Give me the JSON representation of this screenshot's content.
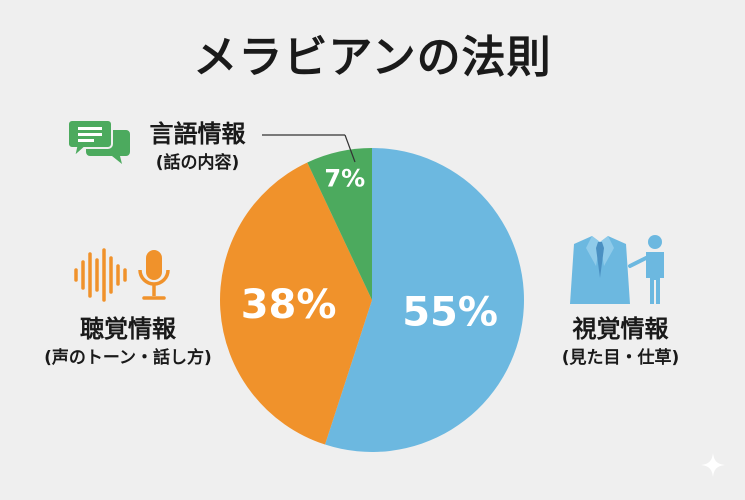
{
  "title": "メラビアンの法則",
  "chart_data": {
    "type": "pie",
    "title": "メラビアンの法則",
    "slices": [
      {
        "label": "視覚情報",
        "sublabel": "(見た目・仕草)",
        "value": 55,
        "display": "55%",
        "color": "#6cb8e0"
      },
      {
        "label": "聴覚情報",
        "sublabel": "(声のトーン・話し方)",
        "value": 38,
        "display": "38%",
        "color": "#f0922b"
      },
      {
        "label": "言語情報",
        "sublabel": "(話の内容)",
        "value": 7,
        "display": "7%",
        "color": "#4caa5e"
      }
    ],
    "start_angle_deg": 0,
    "direction": "clockwise"
  },
  "icons": {
    "verbal": "chat-bubbles-icon",
    "auditory": "sound-wave-microphone-icon",
    "visual": "suit-presenter-icon"
  },
  "colors": {
    "background": "#efefef",
    "visual": "#6cb8e0",
    "auditory": "#f0922b",
    "verbal": "#4caa5e",
    "text": "#1a1a1a"
  }
}
